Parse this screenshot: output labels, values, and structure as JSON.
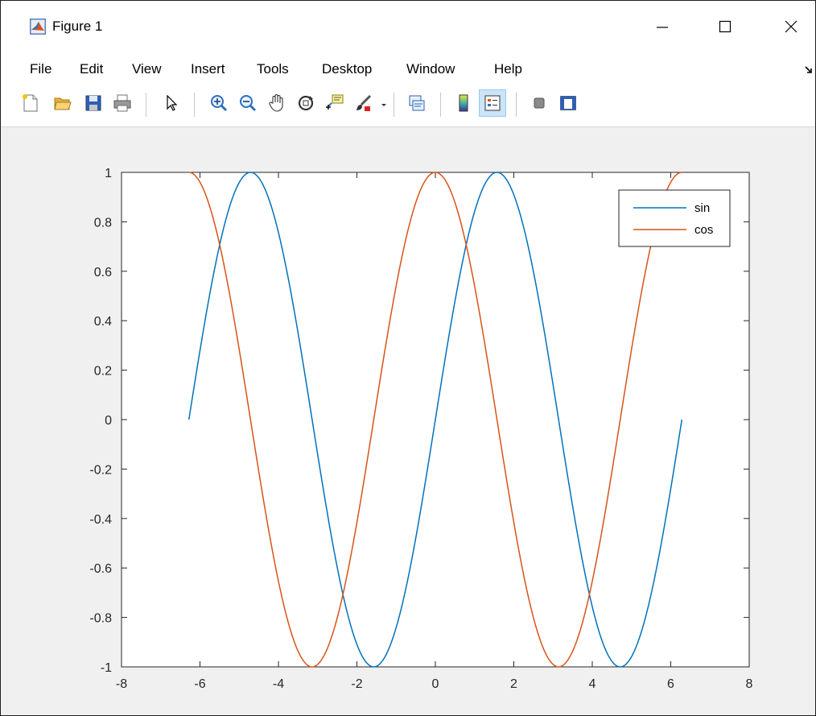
{
  "window": {
    "title": "Figure 1",
    "icon": "matlab-logo-icon"
  },
  "menu": [
    "File",
    "Edit",
    "View",
    "Insert",
    "Tools",
    "Desktop",
    "Window",
    "Help"
  ],
  "toolbar": [
    "new-figure-icon",
    "open-file-icon",
    "save-icon",
    "print-icon",
    "pointer-icon",
    "zoom-in-icon",
    "zoom-out-icon",
    "pan-icon",
    "rotate-3d-icon",
    "data-cursor-icon",
    "brush-icon",
    "brush-dropdown-icon",
    "link-plot-icon",
    "insert-colorbar-icon",
    "insert-legend-icon",
    "hide-plot-tools-icon",
    "show-plot-tools-icon"
  ],
  "chart_data": {
    "type": "line",
    "title": "",
    "xlabel": "",
    "ylabel": "",
    "xlim": [
      -8,
      8
    ],
    "ylim": [
      -1,
      1
    ],
    "xticks": [
      "-8",
      "-6",
      "-4",
      "-2",
      "0",
      "2",
      "4",
      "6",
      "8"
    ],
    "yticks": [
      "-1",
      "-0.8",
      "-0.6",
      "-0.4",
      "-0.2",
      "0",
      "0.2",
      "0.4",
      "0.6",
      "0.8",
      "1"
    ],
    "grid": false,
    "legend_position": "top-right",
    "series": [
      {
        "name": "sin",
        "function": "sin(x)",
        "x_range": [
          -6.2832,
          6.2832
        ],
        "color": "#0072bd"
      },
      {
        "name": "cos",
        "function": "cos(x)",
        "x_range": [
          -6.2832,
          6.2832
        ],
        "color": "#d95319"
      }
    ]
  }
}
